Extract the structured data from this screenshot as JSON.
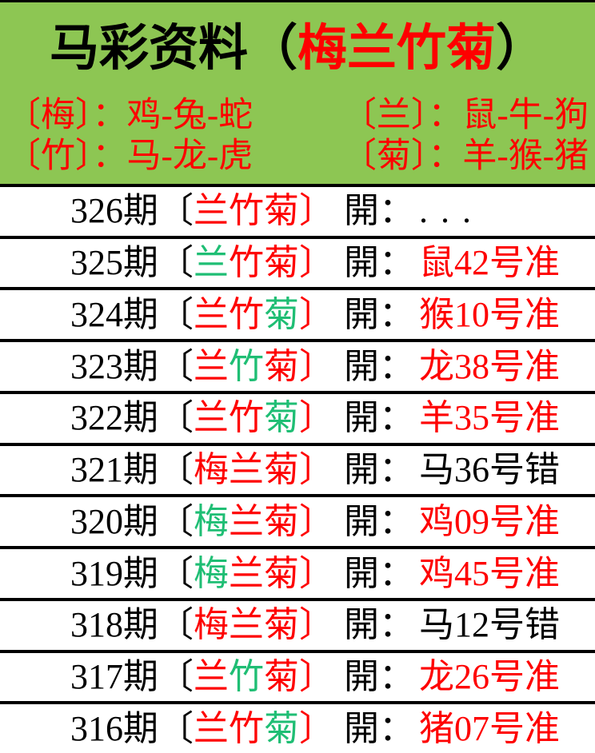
{
  "colors": {
    "red": "#FE0000",
    "green": "#1FBE74",
    "black": "#000000",
    "banner_green": "#8DC653",
    "divider": "#000000",
    "row_bg": "#FFFFFF"
  },
  "banner": {
    "title": {
      "prefix": "马彩资料（",
      "highlight": "梅兰竹菊",
      "suffix": "）"
    },
    "legend": [
      {
        "tag": "〔梅〕：",
        "animals": "鸡-兔-蛇"
      },
      {
        "tag": "〔兰〕：",
        "animals": "鼠-牛-狗"
      },
      {
        "tag": "〔竹〕：",
        "animals": "马-龙-虎"
      },
      {
        "tag": "〔菊〕：",
        "animals": "羊-猴-猪"
      }
    ]
  },
  "history": {
    "labels": {
      "open_bracket": "〔",
      "close_bracket": "〕",
      "open_prefix": "開："
    },
    "rows": [
      {
        "period": "326期",
        "flowers": [
          {
            "ch": "兰",
            "hit": false
          },
          {
            "ch": "竹",
            "hit": false
          },
          {
            "ch": "菊",
            "hit": false
          }
        ],
        "result": "...",
        "result_status": "pending"
      },
      {
        "period": "325期",
        "flowers": [
          {
            "ch": "兰",
            "hit": true
          },
          {
            "ch": "竹",
            "hit": false
          },
          {
            "ch": "菊",
            "hit": false
          }
        ],
        "result": "鼠42号准",
        "result_status": "hit"
      },
      {
        "period": "324期",
        "flowers": [
          {
            "ch": "兰",
            "hit": false
          },
          {
            "ch": "竹",
            "hit": false
          },
          {
            "ch": "菊",
            "hit": true
          }
        ],
        "result": "猴10号准",
        "result_status": "hit"
      },
      {
        "period": "323期",
        "flowers": [
          {
            "ch": "兰",
            "hit": false
          },
          {
            "ch": "竹",
            "hit": true
          },
          {
            "ch": "菊",
            "hit": false
          }
        ],
        "result": "龙38号准",
        "result_status": "hit"
      },
      {
        "period": "322期",
        "flowers": [
          {
            "ch": "兰",
            "hit": false
          },
          {
            "ch": "竹",
            "hit": false
          },
          {
            "ch": "菊",
            "hit": true
          }
        ],
        "result": "羊35号准",
        "result_status": "hit"
      },
      {
        "period": "321期",
        "flowers": [
          {
            "ch": "梅",
            "hit": false
          },
          {
            "ch": "兰",
            "hit": false
          },
          {
            "ch": "菊",
            "hit": false
          }
        ],
        "result": "马36号错",
        "result_status": "miss"
      },
      {
        "period": "320期",
        "flowers": [
          {
            "ch": "梅",
            "hit": true
          },
          {
            "ch": "兰",
            "hit": false
          },
          {
            "ch": "菊",
            "hit": false
          }
        ],
        "result": "鸡09号准",
        "result_status": "hit"
      },
      {
        "period": "319期",
        "flowers": [
          {
            "ch": "梅",
            "hit": true
          },
          {
            "ch": "兰",
            "hit": false
          },
          {
            "ch": "菊",
            "hit": false
          }
        ],
        "result": "鸡45号准",
        "result_status": "hit"
      },
      {
        "period": "318期",
        "flowers": [
          {
            "ch": "梅",
            "hit": false
          },
          {
            "ch": "兰",
            "hit": false
          },
          {
            "ch": "菊",
            "hit": false
          }
        ],
        "result": "马12号错",
        "result_status": "miss"
      },
      {
        "period": "317期",
        "flowers": [
          {
            "ch": "兰",
            "hit": false
          },
          {
            "ch": "竹",
            "hit": true
          },
          {
            "ch": "菊",
            "hit": false
          }
        ],
        "result": "龙26号准",
        "result_status": "hit"
      },
      {
        "period": "316期",
        "flowers": [
          {
            "ch": "兰",
            "hit": false
          },
          {
            "ch": "竹",
            "hit": false
          },
          {
            "ch": "菊",
            "hit": true
          }
        ],
        "result": "猪07号准",
        "result_status": "hit"
      }
    ]
  }
}
